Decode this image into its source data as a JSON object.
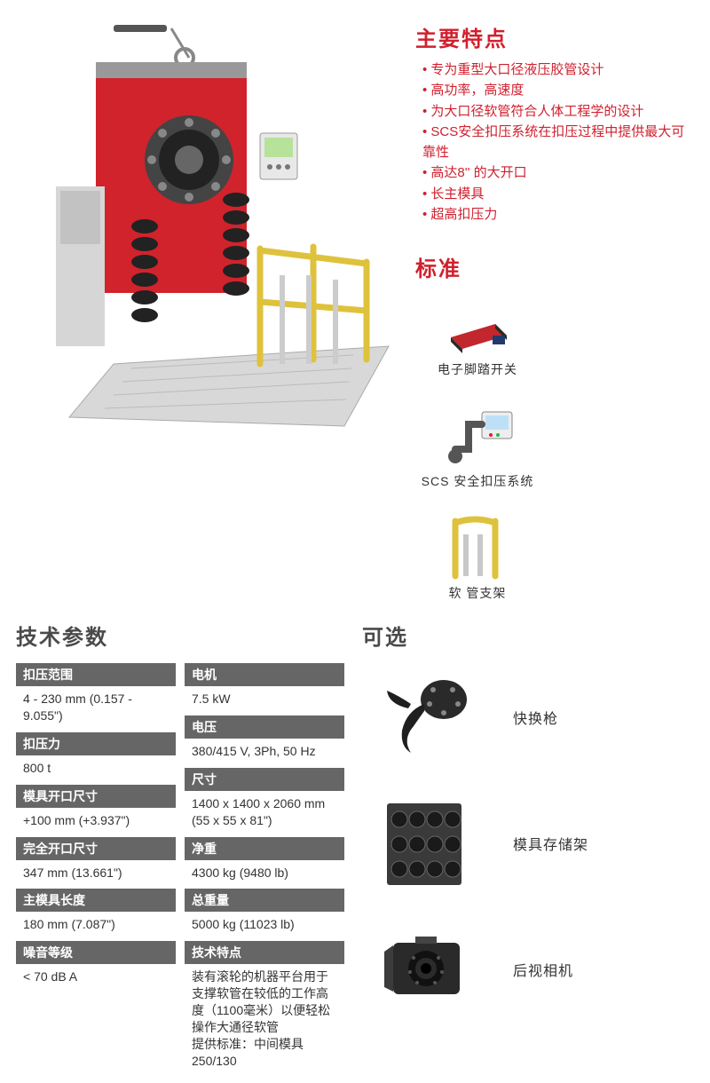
{
  "colors": {
    "accent": "#d0202e",
    "spec_header_bg": "#666666",
    "text": "#333333",
    "rail_yellow": "#dfc23c",
    "machine_red": "#d1232c",
    "machine_grey": "#cfcfcf"
  },
  "features": {
    "title": "主要特点",
    "items": [
      "专为重型大口径液压胶管设计",
      "高功率，高速度",
      "为大口径软管符合人体工程学的设计",
      "SCS安全扣压系统在扣压过程中提供最大可靠性",
      "高达8'' 的大开口",
      "长主模具",
      "超高扣压力"
    ]
  },
  "standard": {
    "title": "标准",
    "items": [
      {
        "icon": "foot-switch",
        "label": "电子脚踏开关"
      },
      {
        "icon": "scs-device",
        "label": "SCS 安全扣压系统"
      },
      {
        "icon": "hose-rack",
        "label": "软 管支架"
      }
    ]
  },
  "specs": {
    "title": "技术参数",
    "left": [
      {
        "label": "扣压范围",
        "value": "4 - 230 mm (0.157 - 9.055\")"
      },
      {
        "label": "扣压力",
        "value": "800 t"
      },
      {
        "label": "模具开口尺寸",
        "value": "+100 mm (+3.937\")"
      },
      {
        "label": "完全开口尺寸",
        "value": "347 mm (13.661\")"
      },
      {
        "label": "主模具长度",
        "value": "180 mm (7.087\")"
      },
      {
        "label": "噪音等级",
        "value": "< 70 dB A"
      }
    ],
    "right": [
      {
        "label": "电机",
        "value": "7.5 kW"
      },
      {
        "label": "电压",
        "value": "380/415 V, 3Ph, 50 Hz"
      },
      {
        "label": "尺寸",
        "value": "1400 x 1400 x 2060 mm (55 x 55 x 81\")"
      },
      {
        "label": "净重",
        "value": "4300 kg (9480 lb)"
      },
      {
        "label": "总重量",
        "value": "5000 kg (11023 lb)"
      },
      {
        "label": "技术特点",
        "value": "装有滚轮的机器平台用于支撑软管在较低的工作高度（1100毫米）以便轻松操作大通径软管\n提供标准：中间模具 250/130"
      }
    ]
  },
  "options": {
    "title": "可选",
    "items": [
      {
        "icon": "quick-gun",
        "label": "快换枪"
      },
      {
        "icon": "die-rack",
        "label": "模具存储架"
      },
      {
        "icon": "rear-cam",
        "label": "后视相机"
      }
    ]
  }
}
